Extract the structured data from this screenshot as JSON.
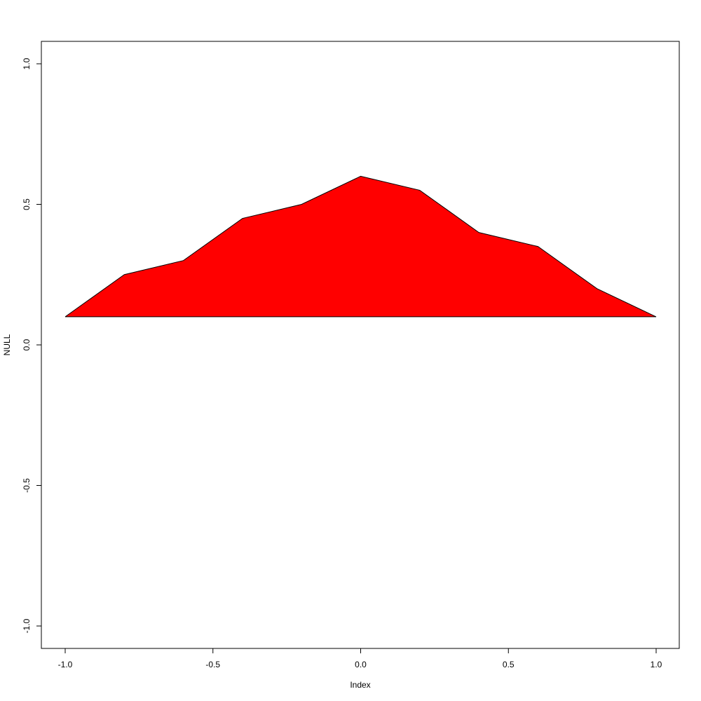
{
  "chart_data": {
    "type": "area",
    "title": "",
    "xlabel": "Index",
    "ylabel": "NULL",
    "xlim": [
      -1.0,
      1.0
    ],
    "ylim": [
      -1.0,
      1.0
    ],
    "x_ticks": [
      "-1.0",
      "-0.5",
      "0.0",
      "0.5",
      "1.0"
    ],
    "y_ticks": [
      "-1.0",
      "-0.5",
      "0.0",
      "0.5",
      "1.0"
    ],
    "grid": false,
    "legend": "none",
    "baseline": 0.1,
    "fill_color": "#ff0000",
    "line_color": "#000000",
    "x": [
      -1.0,
      -0.8,
      -0.6,
      -0.4,
      -0.2,
      0.0,
      0.2,
      0.4,
      0.6,
      0.8,
      1.0
    ],
    "y": [
      0.1,
      0.25,
      0.3,
      0.45,
      0.5,
      0.6,
      0.55,
      0.4,
      0.35,
      0.2,
      0.1
    ]
  }
}
